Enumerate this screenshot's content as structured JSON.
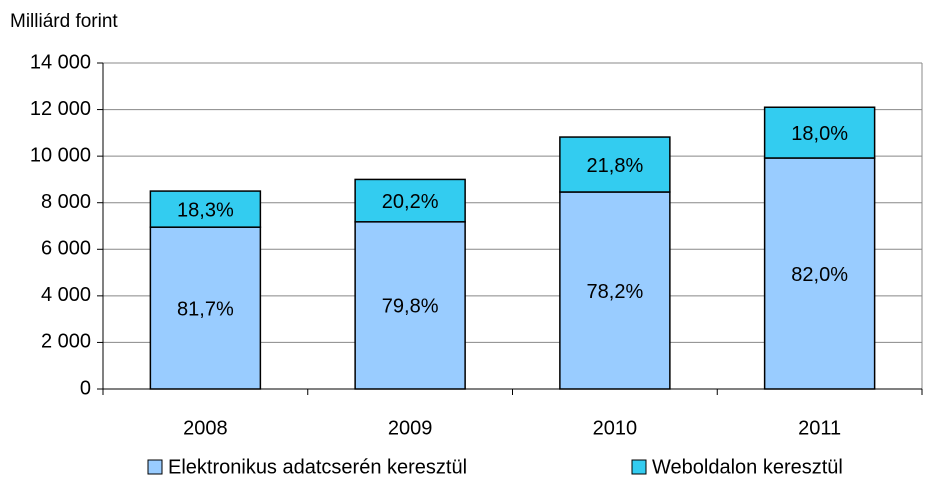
{
  "chart_data": {
    "type": "stacked_bar",
    "y_label": "Milliárd forint",
    "categories": [
      "2008",
      "2009",
      "2010",
      "2011"
    ],
    "series": [
      {
        "name": "Elektronikus adatcserén keresztül",
        "color": "#99ccff",
        "values": [
          6950,
          7180,
          8460,
          9920
        ],
        "value_labels": [
          "81,7%",
          "79,8%",
          "78,2%",
          "82,0%"
        ]
      },
      {
        "name": "Weboldalon keresztül",
        "color": "#33ccf0",
        "values": [
          1550,
          1820,
          2360,
          2180
        ],
        "value_labels": [
          "18,3%",
          "20,2%",
          "21,8%",
          "18,0%"
        ]
      }
    ],
    "ylim": [
      0,
      14000
    ],
    "yticks": [
      0,
      {
        "value": 2000,
        "label": "2 000"
      },
      {
        "value": 4000,
        "label": "4 000"
      },
      {
        "value": 6000,
        "label": "6 000"
      },
      {
        "value": 8000,
        "label": "8 000"
      },
      {
        "value": 10000,
        "label": "10 000"
      },
      {
        "value": 12000,
        "label": "12 000"
      },
      {
        "value": 14000,
        "label": "14 000"
      }
    ],
    "grid": true,
    "legend": "bottom"
  }
}
